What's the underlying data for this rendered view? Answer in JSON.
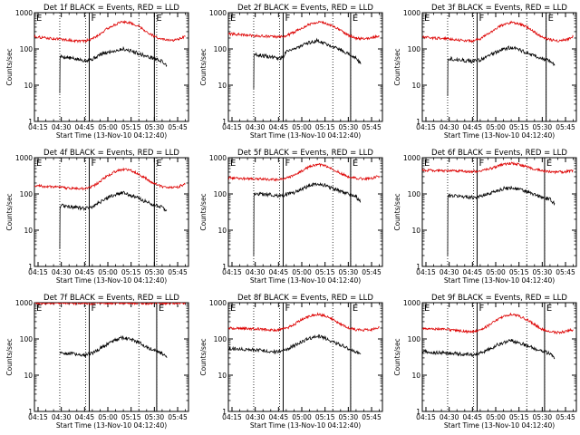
{
  "shared": {
    "ylabel": "Counts/sec",
    "xlabel": "Start Time (13-Nov-10 04:12:40)",
    "x_ticks": [
      "04:15",
      "04:30",
      "04:45",
      "05:00",
      "05:15",
      "05:30",
      "05:45"
    ],
    "y_ticks": [
      "1",
      "10",
      "100",
      "1000"
    ],
    "colors": {
      "events": "#000000",
      "lld": "#dd0000",
      "axes": "#000000"
    }
  },
  "chart_data": [
    {
      "type": "line",
      "title": "Det 1f BLACK = Events, RED = LLD",
      "y_scale": "log",
      "ylim": [
        1,
        1000
      ],
      "xlim": [
        "04:12:40",
        "05:52:00"
      ],
      "markers": [
        {
          "label": "E",
          "time": "04:12:40"
        },
        {
          "label": "F",
          "time": "04:48:00"
        },
        {
          "label": "E",
          "time": "05:30:00"
        }
      ],
      "dotted_lines": [
        "04:29:00",
        "04:45:40",
        "05:20:00",
        "05:31:30"
      ],
      "series": [
        {
          "color": "black",
          "x": [
            "04:29:00",
            "04:29:10",
            "04:30",
            "04:40",
            "04:45",
            "04:50",
            "04:55",
            "05:00",
            "05:05",
            "05:10",
            "05:15",
            "05:20",
            "05:25",
            "05:30",
            "05:35",
            "05:38"
          ],
          "y": [
            6,
            60,
            62,
            52,
            48,
            52,
            70,
            80,
            90,
            100,
            88,
            75,
            62,
            55,
            45,
            35
          ]
        },
        {
          "color": "red",
          "x": [
            "04:12:40",
            "04:20",
            "04:30",
            "04:40",
            "04:45",
            "04:50",
            "04:55",
            "05:00",
            "05:05",
            "05:10",
            "05:15",
            "05:20",
            "05:25",
            "05:30",
            "05:35",
            "05:40",
            "05:45",
            "05:50"
          ],
          "y": [
            220,
            200,
            185,
            165,
            165,
            190,
            260,
            370,
            480,
            560,
            520,
            420,
            300,
            220,
            185,
            170,
            180,
            220
          ]
        }
      ]
    },
    {
      "type": "line",
      "title": "Det 2f BLACK = Events, RED = LLD",
      "y_scale": "log",
      "ylim": [
        1,
        1000
      ],
      "xlim": [
        "04:12:40",
        "05:52:00"
      ],
      "markers": [
        {
          "label": "E",
          "time": "04:12:40"
        },
        {
          "label": "F",
          "time": "04:48:00"
        },
        {
          "label": "E",
          "time": "05:31:30"
        }
      ],
      "dotted_lines": [
        "04:29:00",
        "04:45:40",
        "05:20:00",
        "05:31:30"
      ],
      "series": [
        {
          "color": "black",
          "x": [
            "04:29:00",
            "04:29:10",
            "04:30",
            "04:40",
            "04:45",
            "04:48",
            "04:50",
            "04:55",
            "05:00",
            "05:05",
            "05:10",
            "05:15",
            "05:20",
            "05:25",
            "05:30",
            "05:35",
            "05:38"
          ],
          "y": [
            8,
            70,
            70,
            60,
            55,
            58,
            90,
            100,
            120,
            150,
            170,
            140,
            120,
            95,
            75,
            55,
            38
          ]
        },
        {
          "color": "red",
          "x": [
            "04:12:40",
            "04:20",
            "04:30",
            "04:40",
            "04:45",
            "04:50",
            "04:55",
            "05:00",
            "05:05",
            "05:10",
            "05:15",
            "05:20",
            "05:25",
            "05:30",
            "05:35",
            "05:40",
            "05:45",
            "05:50"
          ],
          "y": [
            260,
            250,
            230,
            220,
            210,
            230,
            290,
            380,
            480,
            560,
            520,
            420,
            330,
            240,
            200,
            190,
            200,
            230
          ]
        }
      ]
    },
    {
      "type": "line",
      "title": "Det 3f BLACK = Events, RED = LLD",
      "y_scale": "log",
      "ylim": [
        1,
        1000
      ],
      "xlim": [
        "04:12:40",
        "05:52:00"
      ],
      "markers": [
        {
          "label": "E",
          "time": "04:12:40"
        },
        {
          "label": "F",
          "time": "04:48:00"
        },
        {
          "label": "E",
          "time": "05:32:30"
        }
      ],
      "dotted_lines": [
        "04:29:00",
        "04:45:40",
        "05:20:00",
        "05:32:30"
      ],
      "series": [
        {
          "color": "black",
          "x": [
            "04:29:00",
            "04:29:10",
            "04:30",
            "04:40",
            "04:45",
            "04:50",
            "04:55",
            "05:00",
            "05:05",
            "05:10",
            "05:15",
            "05:20",
            "05:25",
            "05:30",
            "05:35",
            "05:38"
          ],
          "y": [
            5,
            55,
            55,
            48,
            45,
            50,
            65,
            80,
            100,
            110,
            95,
            80,
            65,
            55,
            45,
            35
          ]
        },
        {
          "color": "red",
          "x": [
            "04:12:40",
            "04:20",
            "04:30",
            "04:40",
            "04:45",
            "04:50",
            "04:55",
            "05:00",
            "05:05",
            "05:10",
            "05:15",
            "05:20",
            "05:25",
            "05:30",
            "05:35",
            "05:40",
            "05:45",
            "05:50"
          ],
          "y": [
            210,
            200,
            190,
            170,
            165,
            190,
            260,
            360,
            470,
            540,
            500,
            400,
            290,
            210,
            180,
            170,
            175,
            220
          ]
        }
      ]
    },
    {
      "type": "line",
      "title": "Det 4f BLACK = Events, RED = LLD",
      "y_scale": "log",
      "ylim": [
        1,
        1000
      ],
      "xlim": [
        "04:12:40",
        "05:52:00"
      ],
      "markers": [
        {
          "label": "E",
          "time": "04:12:40"
        },
        {
          "label": "F",
          "time": "04:48:00"
        },
        {
          "label": "E",
          "time": "05:30:00"
        }
      ],
      "dotted_lines": [
        "04:29:00",
        "04:45:40",
        "05:20:00",
        "05:31:30"
      ],
      "series": [
        {
          "color": "black",
          "x": [
            "04:29:00",
            "04:29:10",
            "04:30",
            "04:40",
            "04:45",
            "04:50",
            "04:55",
            "05:00",
            "05:05",
            "05:10",
            "05:15",
            "05:20",
            "05:25",
            "05:30",
            "05:35",
            "05:38"
          ],
          "y": [
            3,
            45,
            48,
            42,
            40,
            45,
            60,
            80,
            95,
            110,
            90,
            75,
            60,
            50,
            42,
            35
          ]
        },
        {
          "color": "red",
          "x": [
            "04:12:40",
            "04:20",
            "04:30",
            "04:40",
            "04:45",
            "04:50",
            "04:55",
            "05:00",
            "05:05",
            "05:10",
            "05:15",
            "05:20",
            "05:25",
            "05:30",
            "05:35",
            "05:40",
            "05:45",
            "05:50"
          ],
          "y": [
            170,
            160,
            150,
            140,
            140,
            160,
            220,
            320,
            420,
            480,
            440,
            350,
            260,
            190,
            160,
            150,
            155,
            190
          ]
        }
      ]
    },
    {
      "type": "line",
      "title": "Det 5f BLACK = Events, RED = LLD",
      "y_scale": "log",
      "ylim": [
        1,
        1000
      ],
      "xlim": [
        "04:12:40",
        "05:52:00"
      ],
      "markers": [
        {
          "label": "E",
          "time": "04:12:40"
        },
        {
          "label": "F",
          "time": "04:48:00"
        },
        {
          "label": "E",
          "time": "05:31:30"
        }
      ],
      "dotted_lines": [
        "04:29:00",
        "04:45:40",
        "05:20:00",
        "05:31:30"
      ],
      "series": [
        {
          "color": "black",
          "x": [
            "04:29:00",
            "04:29:10",
            "04:30",
            "04:40",
            "04:45",
            "04:50",
            "04:55",
            "05:00",
            "05:05",
            "05:10",
            "05:15",
            "05:20",
            "05:25",
            "05:30",
            "05:35",
            "05:38"
          ],
          "y": [
            2,
            90,
            100,
            95,
            90,
            95,
            110,
            140,
            170,
            190,
            170,
            140,
            120,
            100,
            85,
            60
          ]
        },
        {
          "color": "red",
          "x": [
            "04:12:40",
            "04:20",
            "04:30",
            "04:40",
            "04:45",
            "04:50",
            "04:55",
            "05:00",
            "05:05",
            "05:10",
            "05:15",
            "05:20",
            "05:25",
            "05:30",
            "05:35",
            "05:40",
            "05:45",
            "05:50"
          ],
          "y": [
            280,
            270,
            260,
            250,
            250,
            270,
            330,
            430,
            560,
            650,
            600,
            480,
            370,
            300,
            270,
            260,
            270,
            310
          ]
        }
      ]
    },
    {
      "type": "line",
      "title": "Det 6f BLACK = Events, RED = LLD",
      "y_scale": "log",
      "ylim": [
        1,
        1000
      ],
      "xlim": [
        "04:12:40",
        "05:52:00"
      ],
      "markers": [
        {
          "label": "E",
          "time": "04:12:40"
        },
        {
          "label": "F",
          "time": "04:48:00"
        },
        {
          "label": "E",
          "time": "05:31:30"
        }
      ],
      "dotted_lines": [
        "04:29:00",
        "04:45:40",
        "05:20:00",
        "05:31:30"
      ],
      "series": [
        {
          "color": "black",
          "x": [
            "04:29:00",
            "04:29:10",
            "04:30",
            "04:40",
            "04:45",
            "04:50",
            "04:55",
            "05:00",
            "05:05",
            "05:10",
            "05:15",
            "05:20",
            "05:25",
            "05:30",
            "05:35",
            "05:38"
          ],
          "y": [
            2,
            85,
            90,
            85,
            80,
            85,
            100,
            120,
            140,
            150,
            135,
            115,
            95,
            80,
            70,
            55
          ]
        },
        {
          "color": "red",
          "x": [
            "04:12:40",
            "04:20",
            "04:30",
            "04:40",
            "04:45",
            "04:50",
            "04:55",
            "05:00",
            "05:05",
            "05:10",
            "05:15",
            "05:20",
            "05:25",
            "05:30",
            "05:35",
            "05:40",
            "05:45",
            "05:50"
          ],
          "y": [
            450,
            440,
            430,
            420,
            410,
            430,
            480,
            560,
            650,
            700,
            650,
            560,
            480,
            430,
            410,
            400,
            410,
            440
          ]
        }
      ]
    },
    {
      "type": "line",
      "title": "Det 7f BLACK = Events, RED = LLD",
      "y_scale": "log",
      "ylim": [
        1,
        1000
      ],
      "xlim": [
        "04:12:40",
        "05:52:00"
      ],
      "markers": [
        {
          "label": "E",
          "time": "04:12:40"
        },
        {
          "label": "F",
          "time": "04:48:00"
        },
        {
          "label": "E",
          "time": "05:31:30"
        }
      ],
      "dotted_lines": [
        "04:29:00",
        "04:45:40",
        "05:20:00",
        "05:31:30"
      ],
      "series": [
        {
          "color": "black",
          "x": [
            "04:29:00",
            "04:30",
            "04:40",
            "04:45",
            "04:50",
            "04:55",
            "05:00",
            "05:05",
            "05:10",
            "05:15",
            "05:20",
            "05:25",
            "05:30",
            "05:35",
            "05:38"
          ],
          "y": [
            40,
            42,
            38,
            36,
            40,
            55,
            75,
            95,
            110,
            95,
            80,
            60,
            50,
            40,
            30
          ]
        },
        {
          "color": "red",
          "x": [
            "04:12:40",
            "04:20",
            "04:30",
            "04:40",
            "04:45",
            "04:50",
            "04:55",
            "05:00",
            "05:05",
            "05:10",
            "05:15",
            "05:20",
            "05:25",
            "05:30",
            "05:35",
            "05:40",
            "05:45",
            "05:50"
          ],
          "y": [
            980,
            960,
            1000,
            940,
            990,
            950,
            1000,
            970,
            990,
            1000,
            960,
            990,
            940,
            1000,
            950,
            990,
            960,
            1000
          ]
        }
      ]
    },
    {
      "type": "line",
      "title": "Det 8f BLACK = Events, RED = LLD",
      "y_scale": "log",
      "ylim": [
        1,
        1000
      ],
      "xlim": [
        "04:12:40",
        "05:52:00"
      ],
      "markers": [
        {
          "label": "E",
          "time": "04:12:40"
        },
        {
          "label": "F",
          "time": "04:48:00"
        },
        {
          "label": "E",
          "time": "05:31:30"
        }
      ],
      "dotted_lines": [
        "04:29:00",
        "04:45:40",
        "05:20:00",
        "05:31:30"
      ],
      "series": [
        {
          "color": "black",
          "x": [
            "04:12:40",
            "04:20",
            "04:30",
            "04:40",
            "04:45",
            "04:50",
            "04:55",
            "05:00",
            "05:05",
            "05:10",
            "05:15",
            "05:20",
            "05:25",
            "05:30",
            "05:35",
            "05:38"
          ],
          "y": [
            55,
            52,
            50,
            45,
            44,
            50,
            65,
            85,
            105,
            120,
            105,
            85,
            68,
            55,
            45,
            38
          ]
        },
        {
          "color": "red",
          "x": [
            "04:12:40",
            "04:20",
            "04:30",
            "04:40",
            "04:45",
            "04:50",
            "04:55",
            "05:00",
            "05:05",
            "05:10",
            "05:15",
            "05:20",
            "05:25",
            "05:30",
            "05:35",
            "05:40",
            "05:45",
            "05:50"
          ],
          "y": [
            200,
            195,
            190,
            180,
            175,
            195,
            250,
            340,
            430,
            480,
            440,
            350,
            260,
            200,
            180,
            175,
            180,
            210
          ]
        }
      ]
    },
    {
      "type": "line",
      "title": "Det 9f BLACK = Events, RED = LLD",
      "y_scale": "log",
      "ylim": [
        1,
        1000
      ],
      "xlim": [
        "04:12:40",
        "05:52:00"
      ],
      "markers": [
        {
          "label": "E",
          "time": "04:12:40"
        },
        {
          "label": "F",
          "time": "04:48:00"
        },
        {
          "label": "E",
          "time": "05:31:30"
        }
      ],
      "dotted_lines": [
        "04:29:00",
        "04:45:40",
        "05:20:00",
        "05:31:30"
      ],
      "series": [
        {
          "color": "black",
          "x": [
            "04:12:40",
            "04:20",
            "04:30",
            "04:40",
            "04:45",
            "04:50",
            "04:55",
            "05:00",
            "05:05",
            "05:10",
            "05:15",
            "05:20",
            "05:25",
            "05:30",
            "05:35",
            "05:38"
          ],
          "y": [
            45,
            42,
            40,
            38,
            36,
            40,
            50,
            65,
            80,
            90,
            80,
            65,
            55,
            45,
            40,
            30
          ]
        },
        {
          "color": "red",
          "x": [
            "04:12:40",
            "04:20",
            "04:30",
            "04:40",
            "04:45",
            "04:50",
            "04:55",
            "05:00",
            "05:05",
            "05:10",
            "05:15",
            "05:20",
            "05:25",
            "05:30",
            "05:35",
            "05:40",
            "05:45",
            "05:50"
          ],
          "y": [
            200,
            190,
            180,
            160,
            155,
            175,
            230,
            320,
            420,
            470,
            430,
            340,
            250,
            185,
            160,
            150,
            160,
            180
          ]
        }
      ]
    }
  ]
}
